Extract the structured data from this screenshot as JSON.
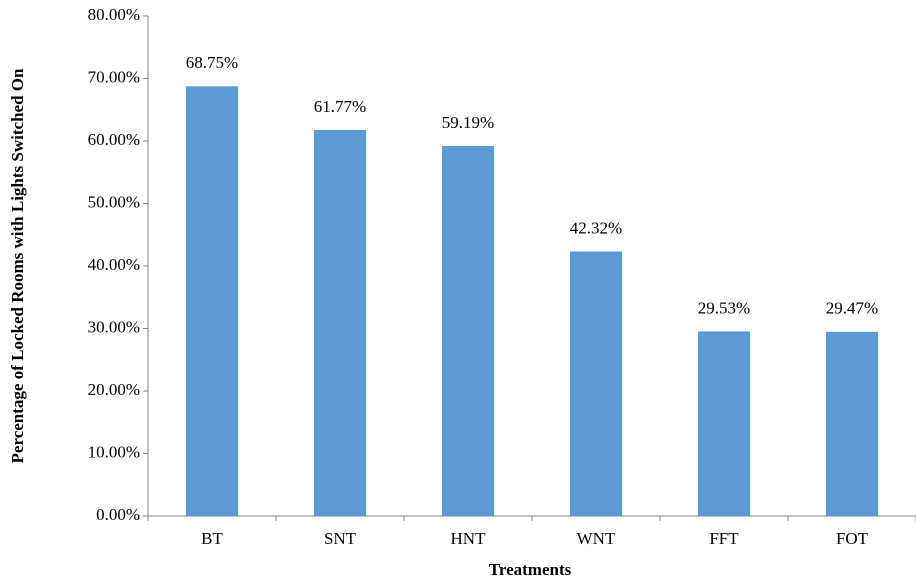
{
  "chart_data": {
    "type": "bar",
    "x_label": "Treatments",
    "y_label": "Percentage of Locked Rooms with Lights Switched On",
    "categories": [
      "BT",
      "SNT",
      "HNT",
      "WNT",
      "FFT",
      "FOT"
    ],
    "values": [
      68.75,
      61.77,
      59.19,
      42.32,
      29.53,
      29.47
    ],
    "value_labels": [
      "68.75%",
      "61.77%",
      "59.19%",
      "42.32%",
      "29.53%",
      "29.47%"
    ],
    "color": "#5b9bd5",
    "ylim": [
      0,
      80
    ],
    "yticks": [
      {
        "value": 0,
        "label": "0.00%"
      },
      {
        "value": 10,
        "label": "10.00%"
      },
      {
        "value": 20,
        "label": "20.00%"
      },
      {
        "value": 30,
        "label": "30.00%"
      },
      {
        "value": 40,
        "label": "40.00%"
      },
      {
        "value": 50,
        "label": "50.00%"
      },
      {
        "value": 60,
        "label": "60.00%"
      },
      {
        "value": 70,
        "label": "70.00%"
      },
      {
        "value": 80,
        "label": "80.00%"
      }
    ],
    "grid": false
  }
}
